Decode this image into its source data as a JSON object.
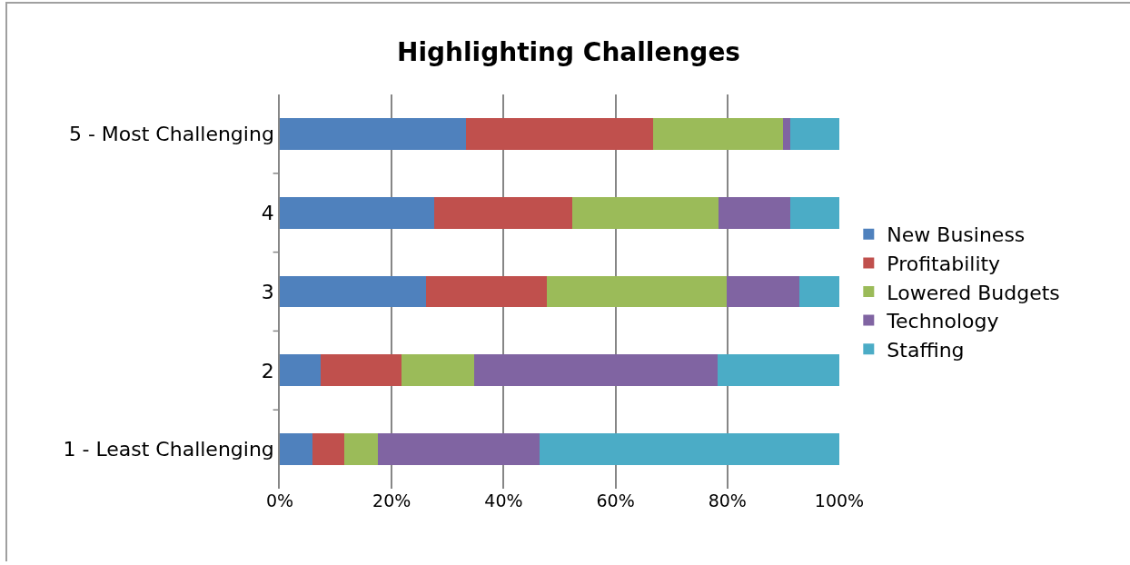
{
  "chart_data": {
    "type": "bar",
    "orientation": "horizontal",
    "stacked": true,
    "title": "Highlighting Challenges",
    "categories": [
      "5 - Most Challenging",
      "4",
      "3",
      "2",
      "1 - Least Challenging"
    ],
    "series": [
      {
        "name": "New Business",
        "color": "#4f81bd",
        "values": [
          33.3,
          27.6,
          26.1,
          7.3,
          5.8
        ]
      },
      {
        "name": "Profitability",
        "color": "#c0504d",
        "values": [
          33.4,
          24.6,
          21.7,
          14.5,
          5.8
        ]
      },
      {
        "name": "Lowered Budgets",
        "color": "#9bbb59",
        "values": [
          23.2,
          26.2,
          32.0,
          13.0,
          5.9
        ]
      },
      {
        "name": "Technology",
        "color": "#8064a2",
        "values": [
          1.4,
          12.9,
          13.0,
          43.4,
          28.9
        ]
      },
      {
        "name": "Staffing",
        "color": "#4bacc6",
        "values": [
          8.7,
          8.7,
          7.2,
          21.8,
          53.6
        ]
      }
    ],
    "xlim": [
      0,
      100
    ],
    "xticks": [
      {
        "value": 0,
        "label": "0%"
      },
      {
        "value": 20,
        "label": "20%"
      },
      {
        "value": 40,
        "label": "40%"
      },
      {
        "value": 60,
        "label": "60%"
      },
      {
        "value": 80,
        "label": "80%"
      },
      {
        "value": 100,
        "label": "100%"
      }
    ],
    "grid": "x",
    "legend": "right"
  }
}
